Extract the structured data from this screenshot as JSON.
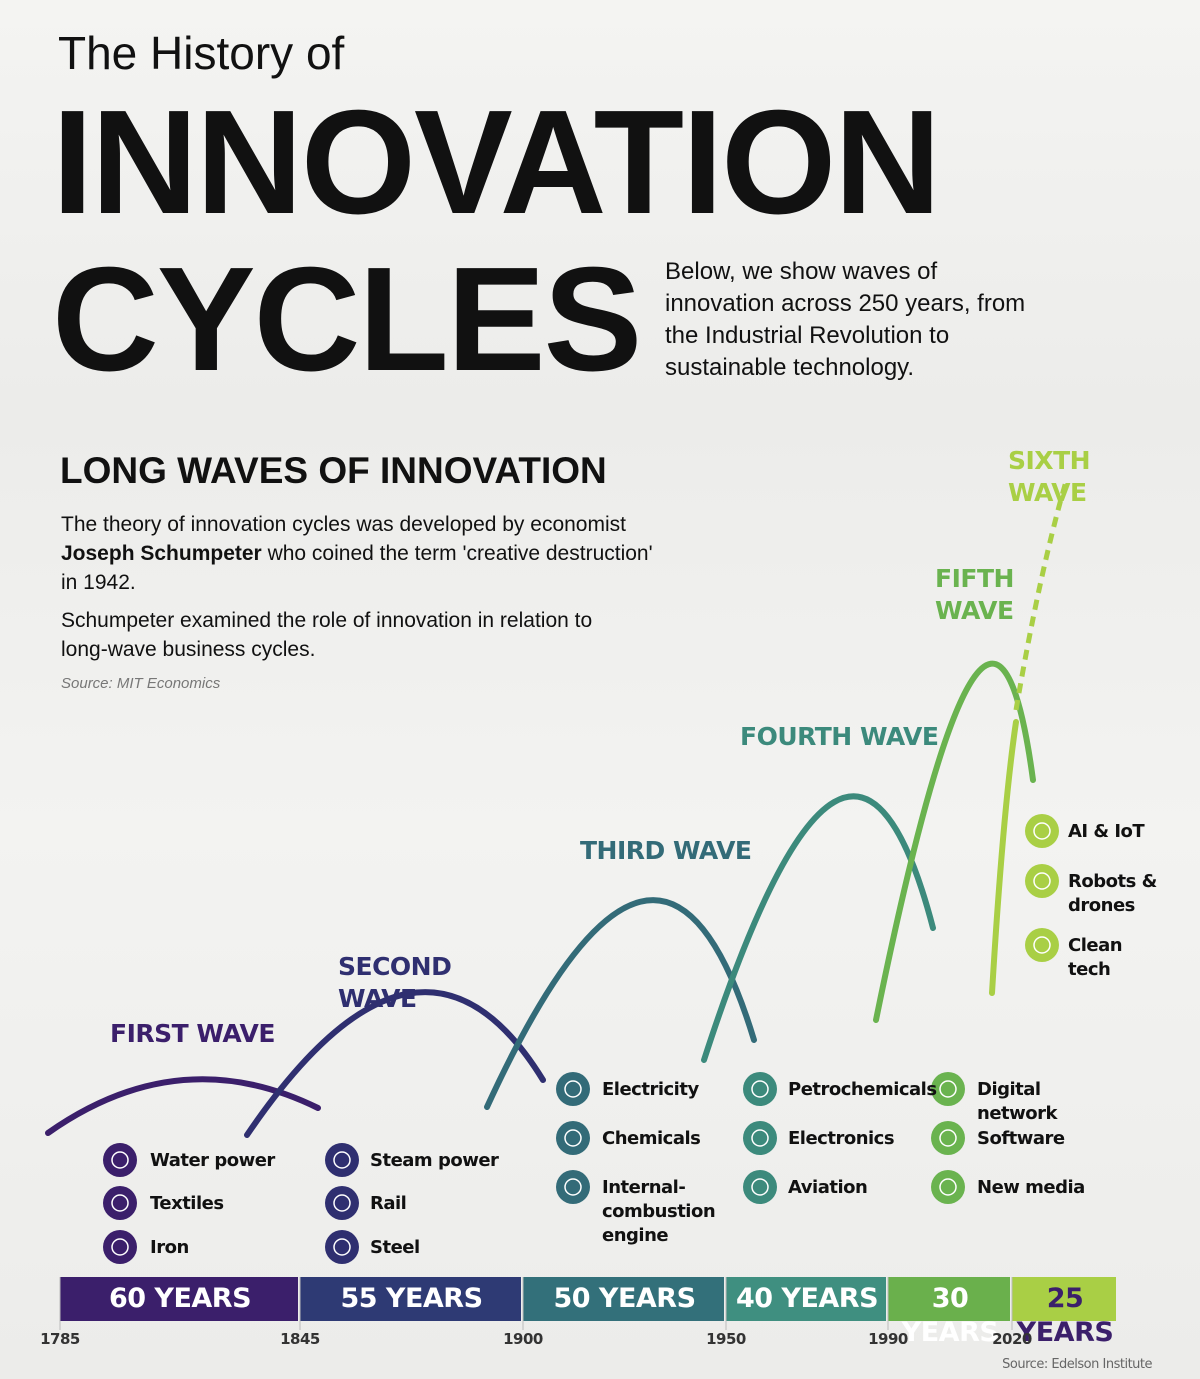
{
  "header": {
    "pre_title": "The History of",
    "title_line1": "INNOVATION",
    "title_line2": "CYCLES",
    "blurb": "Below, we show waves of innovation across 250 years, from the Industrial Revolution to sustainable technology."
  },
  "intro": {
    "heading": "LONG WAVES OF INNOVATION",
    "p1": [
      "The theory of innovation cycles was developed by economist ",
      "Joseph Schumpeter",
      " who coined the term 'creative destruction' in 1942."
    ],
    "p2": "Schumpeter examined the role of innovation in relation to long-wave business cycles.",
    "source": "Source: MIT Economics"
  },
  "waves": [
    {
      "label": "FIRST WAVE",
      "color": "#3b1f6b",
      "duration": "60 YEARS",
      "items": [
        "Water power",
        "Textiles",
        "Iron"
      ]
    },
    {
      "label": "SECOND WAVE",
      "color": "#2f2f70",
      "duration": "55 YEARS",
      "items": [
        "Steam power",
        "Rail",
        "Steel"
      ]
    },
    {
      "label": "THIRD WAVE",
      "color": "#336b78",
      "duration": "50 YEARS",
      "items": [
        "Electricity",
        "Chemicals",
        "Internal-combustion engine"
      ]
    },
    {
      "label": "FOURTH WAVE",
      "color": "#3c8a7c",
      "duration": "40 YEARS",
      "items": [
        "Petrochemicals",
        "Electronics",
        "Aviation"
      ]
    },
    {
      "label": "FIFTH WAVE",
      "color": "#6ab34f",
      "duration": "30 YEARS",
      "items": [
        "Digital network",
        "Software",
        "New media"
      ]
    },
    {
      "label": "SIXTH WAVE",
      "color": "#a9cf45",
      "duration": "25 YEARS",
      "items": [
        "AI & IoT",
        "Robots & drones",
        "Clean tech"
      ]
    }
  ],
  "timeline": {
    "ticks": [
      1785,
      1845,
      1900,
      1950,
      1990,
      2020
    ]
  },
  "source": "Source: Edelson Institute"
}
